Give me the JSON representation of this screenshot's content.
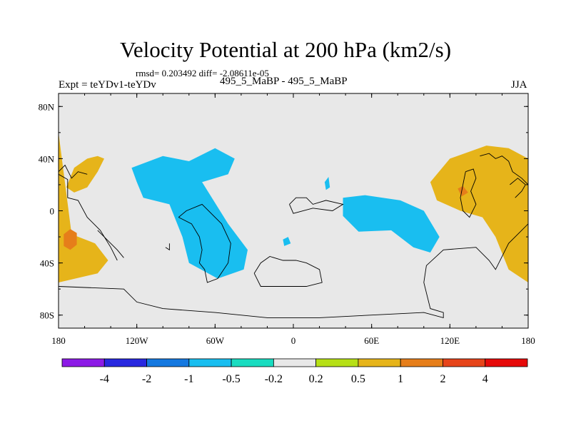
{
  "chart_data": {
    "type": "contour-map",
    "title": "Velocity Potential at 200 hPa (km2/s)",
    "stats_text": "rmsd= 0.203492 diff= -2.08611e-05",
    "left_subtitle": "Expt = teYDv1-teYDv",
    "center_subtitle": "495_5_MaBP - 495_5_MaBP",
    "right_subtitle": "JJA",
    "xlim": [
      -180,
      180
    ],
    "ylim": [
      -90,
      90
    ],
    "x_ticks": [
      {
        "value": -180,
        "label": "180"
      },
      {
        "value": -120,
        "label": "120W"
      },
      {
        "value": -60,
        "label": "60W"
      },
      {
        "value": 0,
        "label": "0"
      },
      {
        "value": 60,
        "label": "60E"
      },
      {
        "value": 120,
        "label": "120E"
      },
      {
        "value": 180,
        "label": "180"
      }
    ],
    "y_ticks": [
      {
        "value": 80,
        "label": "80N"
      },
      {
        "value": 40,
        "label": "40N"
      },
      {
        "value": 0,
        "label": "0"
      },
      {
        "value": -40,
        "label": "40S"
      },
      {
        "value": -80,
        "label": "80S"
      }
    ],
    "colorbar": {
      "colors": [
        "#8c1ae6",
        "#2828e0",
        "#1478e0",
        "#19bef0",
        "#19dcc0",
        "#e8e8e8",
        "#b6e016",
        "#e6b41a",
        "#e67e1a",
        "#e6441a",
        "#e60a0a"
      ],
      "levels": [
        {
          "value": -4,
          "label": "-4"
        },
        {
          "value": -2,
          "label": "-2"
        },
        {
          "value": -1,
          "label": "-1"
        },
        {
          "value": -0.5,
          "label": "-0.5"
        },
        {
          "value": -0.2,
          "label": "-0.2"
        },
        {
          "value": 0.2,
          "label": "0.2"
        },
        {
          "value": 0.5,
          "label": "0.5"
        },
        {
          "value": 1,
          "label": "1"
        },
        {
          "value": 2,
          "label": "2"
        },
        {
          "value": 4,
          "label": "4"
        }
      ]
    },
    "regions": [
      {
        "name": "west-pacific-positive",
        "level": 0.5,
        "points": [
          [
            -180,
            60
          ],
          [
            -170,
            -18
          ],
          [
            -152,
            -25
          ],
          [
            -142,
            -38
          ],
          [
            -150,
            -48
          ],
          [
            -180,
            -55
          ]
        ]
      },
      {
        "name": "north-pacific-positive",
        "level": 0.5,
        "points": [
          [
            -174,
            18
          ],
          [
            -168,
            33
          ],
          [
            -158,
            40
          ],
          [
            -150,
            42
          ],
          [
            -145,
            40
          ],
          [
            -150,
            30
          ],
          [
            -158,
            18
          ],
          [
            -168,
            14
          ]
        ]
      },
      {
        "name": "west-pacific-core",
        "level": 1,
        "points": [
          [
            -176,
            -18
          ],
          [
            -171,
            -14
          ],
          [
            -166,
            -17
          ],
          [
            -166,
            -26
          ],
          [
            -171,
            -30
          ],
          [
            -176,
            -27
          ]
        ]
      },
      {
        "name": "east-pacific-negative",
        "level": -0.5,
        "points": [
          [
            -124,
            33
          ],
          [
            -100,
            42
          ],
          [
            -80,
            38
          ],
          [
            -60,
            48
          ],
          [
            -45,
            40
          ],
          [
            -50,
            28
          ],
          [
            -70,
            22
          ],
          [
            -50,
            -10
          ],
          [
            -35,
            -30
          ],
          [
            -38,
            -45
          ],
          [
            -58,
            -52
          ],
          [
            -80,
            -40
          ],
          [
            -85,
            -20
          ],
          [
            -95,
            5
          ],
          [
            -115,
            10
          ],
          [
            -120,
            22
          ]
        ]
      },
      {
        "name": "africa-negative-small",
        "level": -0.5,
        "points": [
          [
            24,
            22
          ],
          [
            27,
            26
          ],
          [
            28,
            18
          ],
          [
            25,
            16
          ]
        ]
      },
      {
        "name": "atlantic-negative-dot",
        "level": -0.5,
        "points": [
          [
            -8,
            -22
          ],
          [
            -4,
            -20
          ],
          [
            -2,
            -25
          ],
          [
            -7,
            -27
          ]
        ]
      },
      {
        "name": "indian-ocean-negative",
        "level": -0.5,
        "points": [
          [
            38,
            10
          ],
          [
            55,
            12
          ],
          [
            82,
            8
          ],
          [
            100,
            0
          ],
          [
            112,
            -20
          ],
          [
            105,
            -32
          ],
          [
            92,
            -28
          ],
          [
            75,
            -15
          ],
          [
            50,
            -16
          ],
          [
            38,
            -4
          ]
        ]
      },
      {
        "name": "asia-positive",
        "level": 0.5,
        "points": [
          [
            105,
            22
          ],
          [
            120,
            40
          ],
          [
            148,
            50
          ],
          [
            165,
            48
          ],
          [
            180,
            40
          ],
          [
            180,
            -55
          ],
          [
            165,
            -45
          ],
          [
            155,
            -20
          ],
          [
            145,
            -5
          ],
          [
            128,
            0
          ],
          [
            110,
            8
          ]
        ]
      },
      {
        "name": "asia-core",
        "level": 1,
        "points": [
          [
            126,
            17
          ],
          [
            130,
            19
          ],
          [
            134,
            14
          ],
          [
            129,
            11
          ]
        ]
      }
    ],
    "coastlines": [
      [
        [
          -180,
          28
        ],
        [
          -173,
          24
        ],
        [
          -173,
          10
        ],
        [
          -165,
          8
        ],
        [
          -158,
          -5
        ],
        [
          -148,
          -15
        ],
        [
          -140,
          -28
        ],
        [
          -135,
          -38
        ]
      ],
      [
        [
          -150,
          -15
        ],
        [
          -145,
          -20
        ],
        [
          -140,
          -25
        ],
        [
          -135,
          -30
        ],
        [
          -130,
          -36
        ]
      ],
      [
        [
          -88,
          -5
        ],
        [
          -78,
          -10
        ],
        [
          -72,
          -20
        ],
        [
          -70,
          -30
        ],
        [
          -72,
          -40
        ],
        [
          -68,
          -45
        ],
        [
          -66,
          -55
        ],
        [
          -58,
          -52
        ],
        [
          -50,
          -40
        ],
        [
          -48,
          -25
        ],
        [
          -55,
          -10
        ],
        [
          -70,
          5
        ],
        [
          -82,
          0
        ],
        [
          -88,
          -5
        ]
      ],
      [
        [
          -98,
          -28
        ],
        [
          -95,
          -30
        ],
        [
          -95,
          -25
        ]
      ],
      [
        [
          -180,
          -58
        ],
        [
          -130,
          -60
        ],
        [
          -120,
          -70
        ],
        [
          -100,
          -75
        ],
        [
          -60,
          -78
        ],
        [
          -20,
          -82
        ],
        [
          20,
          -82
        ],
        [
          60,
          -80
        ],
        [
          100,
          -78
        ],
        [
          115,
          -82
        ],
        [
          115,
          -78
        ],
        [
          105,
          -75
        ],
        [
          100,
          -55
        ],
        [
          102,
          -42
        ],
        [
          115,
          -30
        ],
        [
          140,
          -28
        ],
        [
          150,
          -38
        ],
        [
          155,
          -45
        ],
        [
          165,
          -25
        ],
        [
          175,
          -15
        ],
        [
          180,
          -10
        ]
      ],
      [
        [
          -3,
          5
        ],
        [
          2,
          10
        ],
        [
          10,
          10
        ],
        [
          15,
          5
        ],
        [
          25,
          8
        ],
        [
          38,
          5
        ],
        [
          30,
          0
        ],
        [
          15,
          2
        ],
        [
          0,
          -2
        ],
        [
          -3,
          5
        ]
      ],
      [
        [
          -30,
          -48
        ],
        [
          -25,
          -40
        ],
        [
          -18,
          -35
        ],
        [
          -8,
          -38
        ],
        [
          2,
          -38
        ],
        [
          10,
          -40
        ],
        [
          20,
          -45
        ],
        [
          22,
          -55
        ],
        [
          10,
          -58
        ],
        [
          -10,
          -58
        ],
        [
          -25,
          -58
        ],
        [
          -30,
          -48
        ]
      ],
      [
        [
          -180,
          30
        ],
        [
          -175,
          35
        ],
        [
          -170,
          25
        ],
        [
          -165,
          30
        ],
        [
          -158,
          28
        ]
      ],
      [
        [
          143,
          42
        ],
        [
          150,
          44
        ],
        [
          155,
          40
        ],
        [
          160,
          42
        ],
        [
          165,
          38
        ],
        [
          168,
          30
        ],
        [
          175,
          25
        ],
        [
          180,
          20
        ]
      ],
      [
        [
          170,
          10
        ],
        [
          175,
          15
        ],
        [
          178,
          20
        ],
        [
          172,
          25
        ],
        [
          166,
          20
        ]
      ],
      [
        [
          132,
          30
        ],
        [
          138,
          32
        ],
        [
          140,
          25
        ],
        [
          136,
          15
        ],
        [
          140,
          5
        ],
        [
          135,
          -5
        ],
        [
          130,
          0
        ],
        [
          128,
          10
        ],
        [
          130,
          20
        ],
        [
          132,
          30
        ]
      ]
    ]
  }
}
